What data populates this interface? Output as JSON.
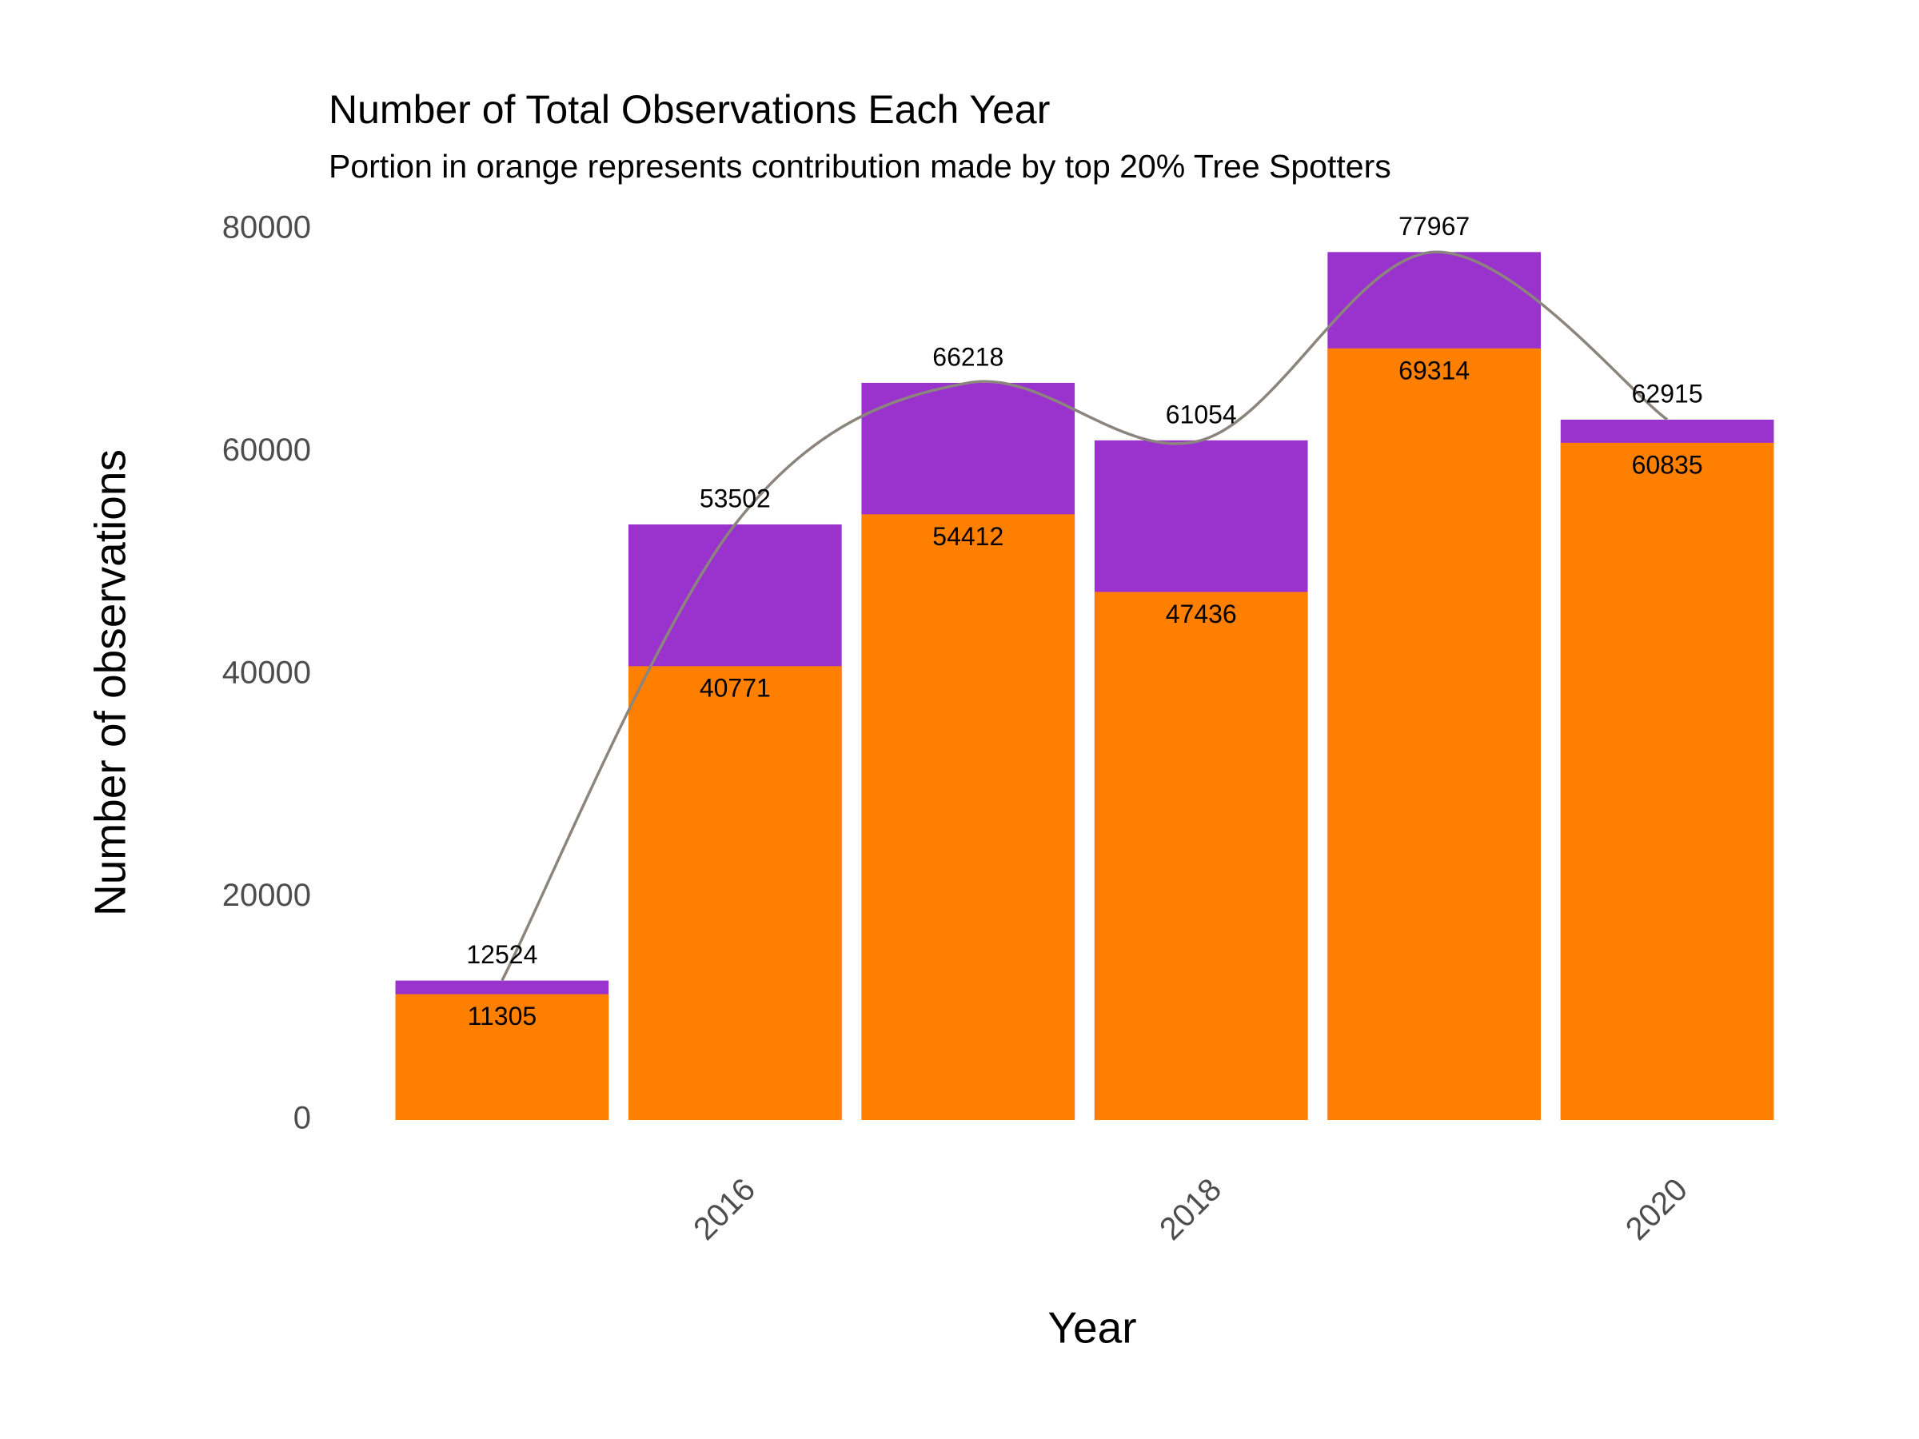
{
  "chart_data": {
    "type": "bar",
    "title": "Number of Total Observations Each Year",
    "subtitle": "Portion in orange represents contribution made by top 20% Tree Spotters",
    "x_label": "Year",
    "y_label": "Number of observations",
    "x": [
      2015,
      2016,
      2017,
      2018,
      2019,
      2020
    ],
    "series": [
      {
        "color": "#9a32cd",
        "values": [
          12524,
          53502,
          66218,
          61054,
          77967,
          62915
        ]
      },
      {
        "color": "#ff7f00",
        "values": [
          11305,
          40771,
          54412,
          47436,
          69314,
          60835
        ]
      }
    ],
    "trend_color": "#8b857d",
    "xlim": [
      2014.4,
      2020.6
    ],
    "xticks": [
      2016,
      2018,
      2020
    ],
    "ylim": [
      0,
      80000
    ],
    "yticks": [
      0,
      20000,
      40000,
      60000,
      80000
    ],
    "grid": false
  }
}
